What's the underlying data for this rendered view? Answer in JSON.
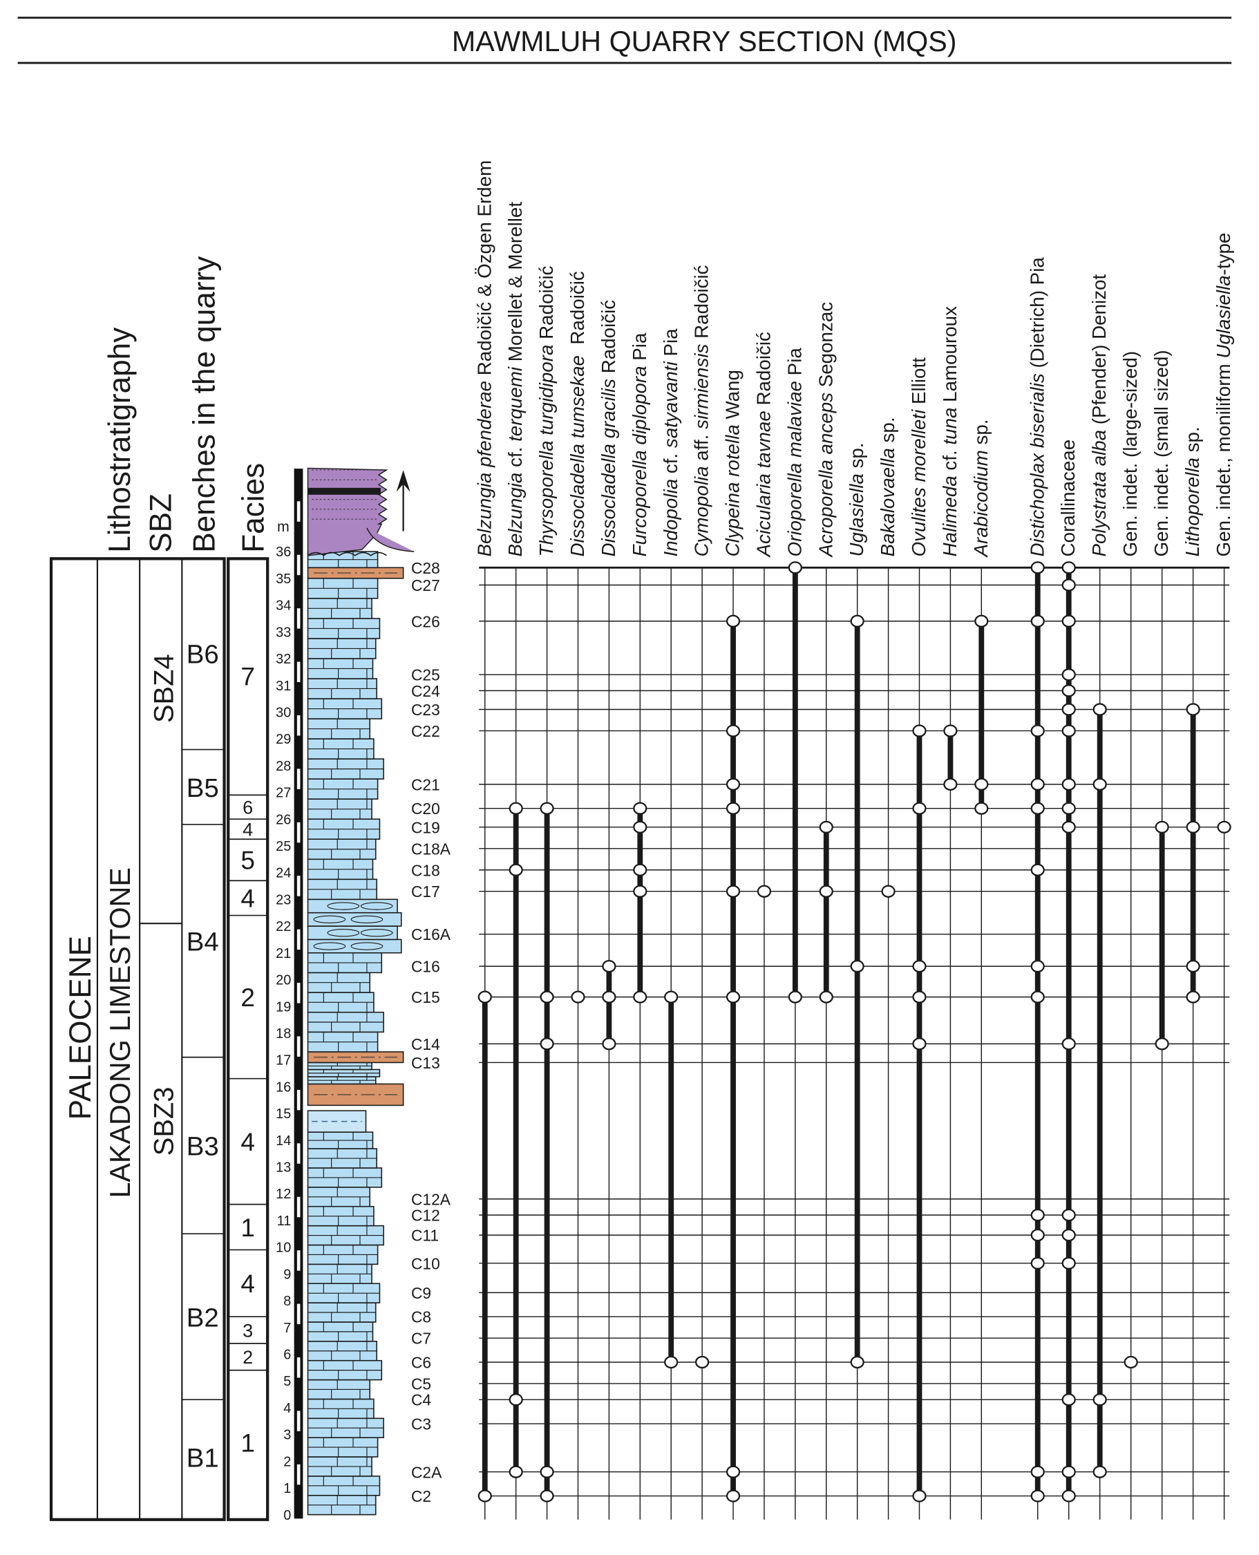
{
  "title": "MAWMLUH QUARRY SECTION (MQS)",
  "column_headers": {
    "lithostratigraphy": "Lithostratigraphy",
    "sbz": "SBZ",
    "benches": "Benches in the quarry",
    "facies": "Facies"
  },
  "lithostratigraphy": {
    "epoch": "PALEOCENE",
    "formation": "LAKADONG LIMESTONE"
  },
  "depth_axis": {
    "unit": "m",
    "min": 0,
    "max": 36
  },
  "sbz": [
    {
      "label": "SBZ3",
      "from": 0,
      "to": 22.1
    },
    {
      "label": "SBZ4",
      "from": 22.1,
      "to": 35.8
    }
  ],
  "benches": [
    {
      "label": "B1",
      "from": 0,
      "to": 4.3
    },
    {
      "label": "B2",
      "from": 4.3,
      "to": 10.5
    },
    {
      "label": "B3",
      "from": 10.5,
      "to": 17.1
    },
    {
      "label": "B4",
      "from": 17.1,
      "to": 25.8
    },
    {
      "label": "B5",
      "from": 25.8,
      "to": 28.6
    },
    {
      "label": "B6",
      "from": 28.6,
      "to": 35.8
    }
  ],
  "facies": [
    {
      "label": "1",
      "from": 0,
      "to": 5.4
    },
    {
      "label": "2",
      "from": 5.4,
      "to": 6.4
    },
    {
      "label": "3",
      "from": 6.4,
      "to": 7.4
    },
    {
      "label": "4",
      "from": 7.4,
      "to": 9.9
    },
    {
      "label": "1",
      "from": 9.9,
      "to": 11.6
    },
    {
      "label": "4",
      "from": 11.6,
      "to": 16.3
    },
    {
      "label": "2",
      "from": 16.3,
      "to": 22.4
    },
    {
      "label": "4",
      "from": 22.4,
      "to": 23.7
    },
    {
      "label": "5",
      "from": 23.7,
      "to": 25.25
    },
    {
      "label": "4",
      "from": 25.25,
      "to": 26.0
    },
    {
      "label": "6",
      "from": 26.0,
      "to": 26.9
    },
    {
      "label": "7",
      "from": 26.9,
      "to": 35.8
    }
  ],
  "samples": [
    {
      "id": "C28",
      "depth": 35.4
    },
    {
      "id": "C27",
      "depth": 34.75
    },
    {
      "id": "C26",
      "depth": 33.4
    },
    {
      "id": "C25",
      "depth": 31.4
    },
    {
      "id": "C24",
      "depth": 30.8
    },
    {
      "id": "C23",
      "depth": 30.1
    },
    {
      "id": "C22",
      "depth": 29.3
    },
    {
      "id": "C21",
      "depth": 27.3
    },
    {
      "id": "C20",
      "depth": 26.4
    },
    {
      "id": "C19",
      "depth": 25.7
    },
    {
      "id": "C18A",
      "depth": 24.9
    },
    {
      "id": "C18",
      "depth": 24.1
    },
    {
      "id": "C17",
      "depth": 23.3
    },
    {
      "id": "C16A",
      "depth": 21.7
    },
    {
      "id": "C16",
      "depth": 20.5
    },
    {
      "id": "C15",
      "depth": 19.35
    },
    {
      "id": "C14",
      "depth": 17.6
    },
    {
      "id": "C13",
      "depth": 16.9
    },
    {
      "id": "C12A",
      "depth": 11.8
    },
    {
      "id": "C12",
      "depth": 11.2
    },
    {
      "id": "C11",
      "depth": 10.45
    },
    {
      "id": "C10",
      "depth": 9.4
    },
    {
      "id": "C9",
      "depth": 8.3
    },
    {
      "id": "C8",
      "depth": 7.4
    },
    {
      "id": "C7",
      "depth": 6.6
    },
    {
      "id": "C6",
      "depth": 5.7
    },
    {
      "id": "C5",
      "depth": 4.9
    },
    {
      "id": "C4",
      "depth": 4.3
    },
    {
      "id": "C3",
      "depth": 3.4
    },
    {
      "id": "C2A",
      "depth": 1.6
    },
    {
      "id": "C2",
      "depth": 0.7
    }
  ],
  "taxa": [
    {
      "parts": [
        {
          "t": "Belzungia pfenderae",
          "i": true
        },
        {
          "t": " Radoičić & Özgen Erdem",
          "i": false
        }
      ],
      "occurrences": [
        "C15",
        "C2"
      ]
    },
    {
      "parts": [
        {
          "t": "Belzungia",
          "i": true
        },
        {
          "t": " cf. ",
          "i": false
        },
        {
          "t": "terquemi",
          "i": true
        },
        {
          "t": " Morellet & Morellet",
          "i": false
        }
      ],
      "occurrences": [
        "C20",
        "C18",
        "C4",
        "C2A"
      ]
    },
    {
      "parts": [
        {
          "t": "Thyrsoporella turgidipora",
          "i": true
        },
        {
          "t": " Radoičić",
          "i": false
        }
      ],
      "occurrences": [
        "C20",
        "C15",
        "C14",
        "C2A",
        "C2"
      ]
    },
    {
      "parts": [
        {
          "t": "Dissocladella tumsekae",
          "i": true
        },
        {
          "t": "  Radoičić",
          "i": false
        }
      ],
      "occurrences": [
        "C15"
      ]
    },
    {
      "parts": [
        {
          "t": "Dissocladella gracilis",
          "i": true
        },
        {
          "t": " Radoičić",
          "i": false
        }
      ],
      "occurrences": [
        "C16",
        "C15",
        "C14"
      ]
    },
    {
      "parts": [
        {
          "t": "Furcoporella diplopora",
          "i": true
        },
        {
          "t": " Pia",
          "i": false
        }
      ],
      "occurrences": [
        "C20",
        "C19",
        "C18",
        "C17",
        "C15"
      ]
    },
    {
      "parts": [
        {
          "t": "Indopolia",
          "i": true
        },
        {
          "t": " cf. ",
          "i": false
        },
        {
          "t": "satyavanti",
          "i": true
        },
        {
          "t": " Pia",
          "i": false
        }
      ],
      "occurrences": [
        "C15",
        "C6"
      ]
    },
    {
      "parts": [
        {
          "t": "Cymopolia",
          "i": true
        },
        {
          "t": " aff. ",
          "i": false
        },
        {
          "t": "sirmiensis",
          "i": true
        },
        {
          "t": " Radoičić",
          "i": false
        }
      ],
      "occurrences": [
        "C6"
      ]
    },
    {
      "parts": [
        {
          "t": "Clypeina rotella",
          "i": true
        },
        {
          "t": " Wang",
          "i": false
        }
      ],
      "occurrences": [
        "C26",
        "C22",
        "C21",
        "C20",
        "C17",
        "C15",
        "C2A",
        "C2"
      ]
    },
    {
      "parts": [
        {
          "t": "Acicularia tavnae",
          "i": true
        },
        {
          "t": " Radoičić",
          "i": false
        }
      ],
      "occurrences": [
        "C17"
      ]
    },
    {
      "parts": [
        {
          "t": "Orioporella malaviae",
          "i": true
        },
        {
          "t": " Pia",
          "i": false
        }
      ],
      "occurrences": [
        "C28",
        "C15"
      ]
    },
    {
      "parts": [
        {
          "t": "Acroporella anceps",
          "i": true
        },
        {
          "t": " Segonzac",
          "i": false
        }
      ],
      "occurrences": [
        "C19",
        "C17",
        "C15"
      ]
    },
    {
      "parts": [
        {
          "t": "Uglasiella",
          "i": true
        },
        {
          "t": " sp.",
          "i": false
        }
      ],
      "occurrences": [
        "C26",
        "C16",
        "C6"
      ]
    },
    {
      "parts": [
        {
          "t": "Bakalovaella",
          "i": true
        },
        {
          "t": " sp.",
          "i": false
        }
      ],
      "occurrences": [
        "C17"
      ]
    },
    {
      "parts": [
        {
          "t": "Ovulites morelleti",
          "i": true
        },
        {
          "t": " Elliott",
          "i": false
        }
      ],
      "occurrences": [
        "C22",
        "C20",
        "C16",
        "C15",
        "C14",
        "C2"
      ]
    },
    {
      "parts": [
        {
          "t": "Halimeda",
          "i": true
        },
        {
          "t": " cf. ",
          "i": false
        },
        {
          "t": "tuna",
          "i": true
        },
        {
          "t": " Lamouroux",
          "i": false
        }
      ],
      "occurrences": [
        "C22",
        "C21"
      ]
    },
    {
      "parts": [
        {
          "t": "Arabicodium",
          "i": true
        },
        {
          "t": " sp.",
          "i": false
        }
      ],
      "occurrences": [
        "C26",
        "C21",
        "C20"
      ]
    },
    {
      "parts": [
        {
          "t": "Distichoplax biserialis",
          "i": true
        },
        {
          "t": " (Dietrich) Pia",
          "i": false
        }
      ],
      "occurrences": [
        "C28",
        "C26",
        "C22",
        "C21",
        "C20",
        "C18",
        "C16",
        "C15",
        "C12",
        "C11",
        "C10",
        "C2A",
        "C2"
      ]
    },
    {
      "parts": [
        {
          "t": "Corallinaceae",
          "i": false
        }
      ],
      "occurrences": [
        "C28",
        "C27",
        "C26",
        "C25",
        "C24",
        "C23",
        "C22",
        "C21",
        "C20",
        "C19",
        "C14",
        "C12",
        "C11",
        "C10",
        "C4",
        "C2A",
        "C2"
      ]
    },
    {
      "parts": [
        {
          "t": "Polystrata alba",
          "i": true
        },
        {
          "t": " (Pfender) Denizot",
          "i": false
        }
      ],
      "occurrences": [
        "C23",
        "C21",
        "C4",
        "C2A"
      ]
    },
    {
      "parts": [
        {
          "t": "Gen. indet. (large-sized)",
          "i": false
        }
      ],
      "occurrences": [
        "C6"
      ]
    },
    {
      "parts": [
        {
          "t": "Gen. indet. (small sized)",
          "i": false
        }
      ],
      "occurrences": [
        "C19",
        "C14"
      ]
    },
    {
      "parts": [
        {
          "t": "Lithoporella",
          "i": true
        },
        {
          "t": " sp.",
          "i": false
        }
      ],
      "occurrences": [
        "C23",
        "C19",
        "C16",
        "C15"
      ]
    },
    {
      "parts": [
        {
          "t": "Gen. indet., moniliform ",
          "i": false
        },
        {
          "t": "Uglasiella",
          "i": true
        },
        {
          "t": "-type",
          "i": false
        }
      ],
      "occurrences": [
        "C19"
      ]
    }
  ],
  "colors": {
    "limestone": "#b5def5",
    "marl": "#d9956a",
    "top_unit": "#ab85c2",
    "line": "#1a1a1a"
  }
}
